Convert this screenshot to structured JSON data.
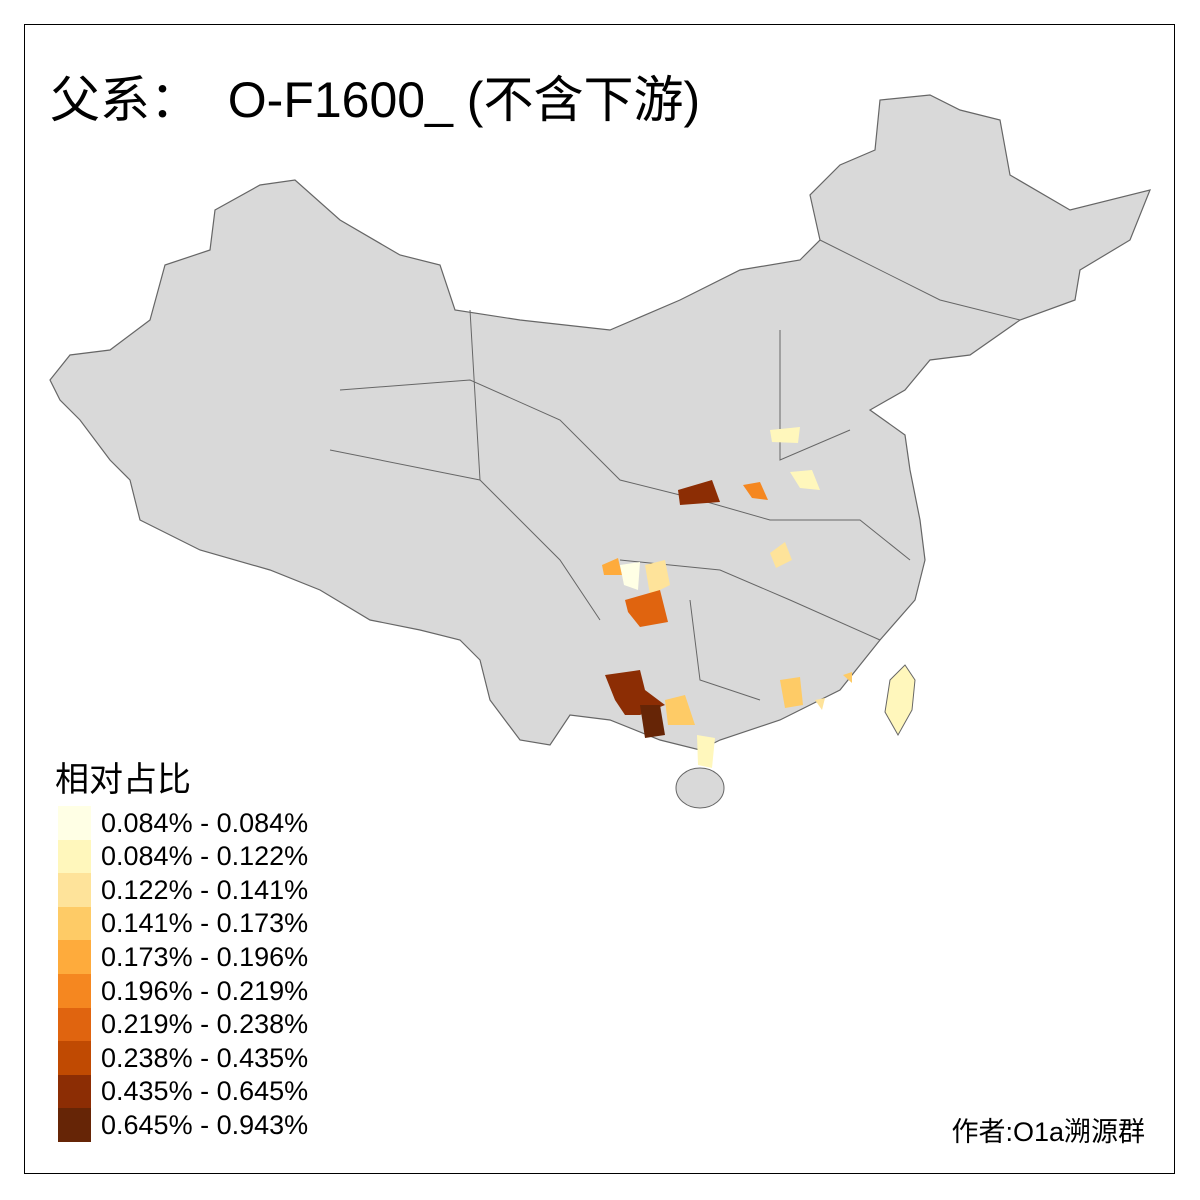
{
  "title": "父系：  O-F1600_ (不含下游)",
  "legend": {
    "title": "相对占比",
    "classes": [
      {
        "label": "0.084% - 0.084%",
        "color": "#FFFFE5"
      },
      {
        "label": "0.084% - 0.122%",
        "color": "#FFF7BC"
      },
      {
        "label": "0.122% - 0.141%",
        "color": "#FEE39A"
      },
      {
        "label": "0.141% - 0.173%",
        "color": "#FECB66"
      },
      {
        "label": "0.173% - 0.196%",
        "color": "#FEAB3C"
      },
      {
        "label": "0.196% - 0.219%",
        "color": "#F58720"
      },
      {
        "label": "0.219% - 0.238%",
        "color": "#E0640F"
      },
      {
        "label": "0.238% - 0.435%",
        "color": "#C04A02"
      },
      {
        "label": "0.435% - 0.645%",
        "color": "#8C2D04"
      },
      {
        "label": "0.645% - 0.943%",
        "color": "#662506"
      }
    ]
  },
  "map": {
    "base_color": "#D9D9D9",
    "border_color": "#666666",
    "highlighted_region_classes": [
      8,
      5,
      1,
      1,
      2,
      4,
      0,
      2,
      6,
      8,
      9,
      3,
      3,
      3,
      2,
      1
    ]
  },
  "author": "作者:O1a溯源群"
}
